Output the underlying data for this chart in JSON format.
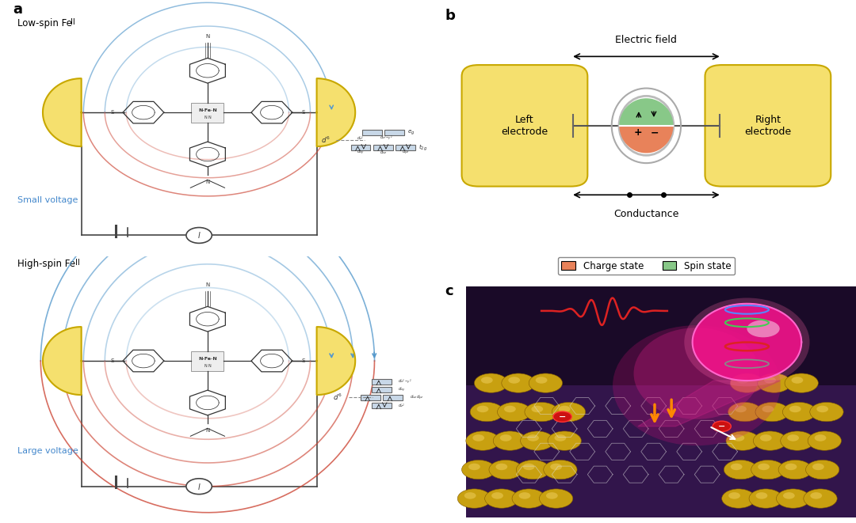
{
  "panel_a_label": "a",
  "panel_b_label": "b",
  "panel_c_label": "c",
  "top_label": "Low-spin Fe",
  "top_label_super": "II",
  "bottom_label": "High-spin Fe",
  "bottom_label_super": "II",
  "small_voltage": "Small voltage",
  "large_voltage": "Large voltage",
  "electric_field": "Electric field",
  "conductance": "Conductance",
  "left_electrode": "Left\nelectrode",
  "right_electrode": "Right\nelectrode",
  "charge_state": "Charge state",
  "spin_state": "Spin state",
  "bg_color": "#ffffff",
  "electrode_color": "#f5e06e",
  "electrode_border": "#c8a800",
  "red_arc_color": "#cc4433",
  "blue_arc_color": "#5599cc",
  "circuit_color": "#444444",
  "molecule_color": "#333333",
  "charge_state_color": "#e8825a",
  "spin_state_color": "#88c888",
  "orbital_bg": "#c8d8e8"
}
